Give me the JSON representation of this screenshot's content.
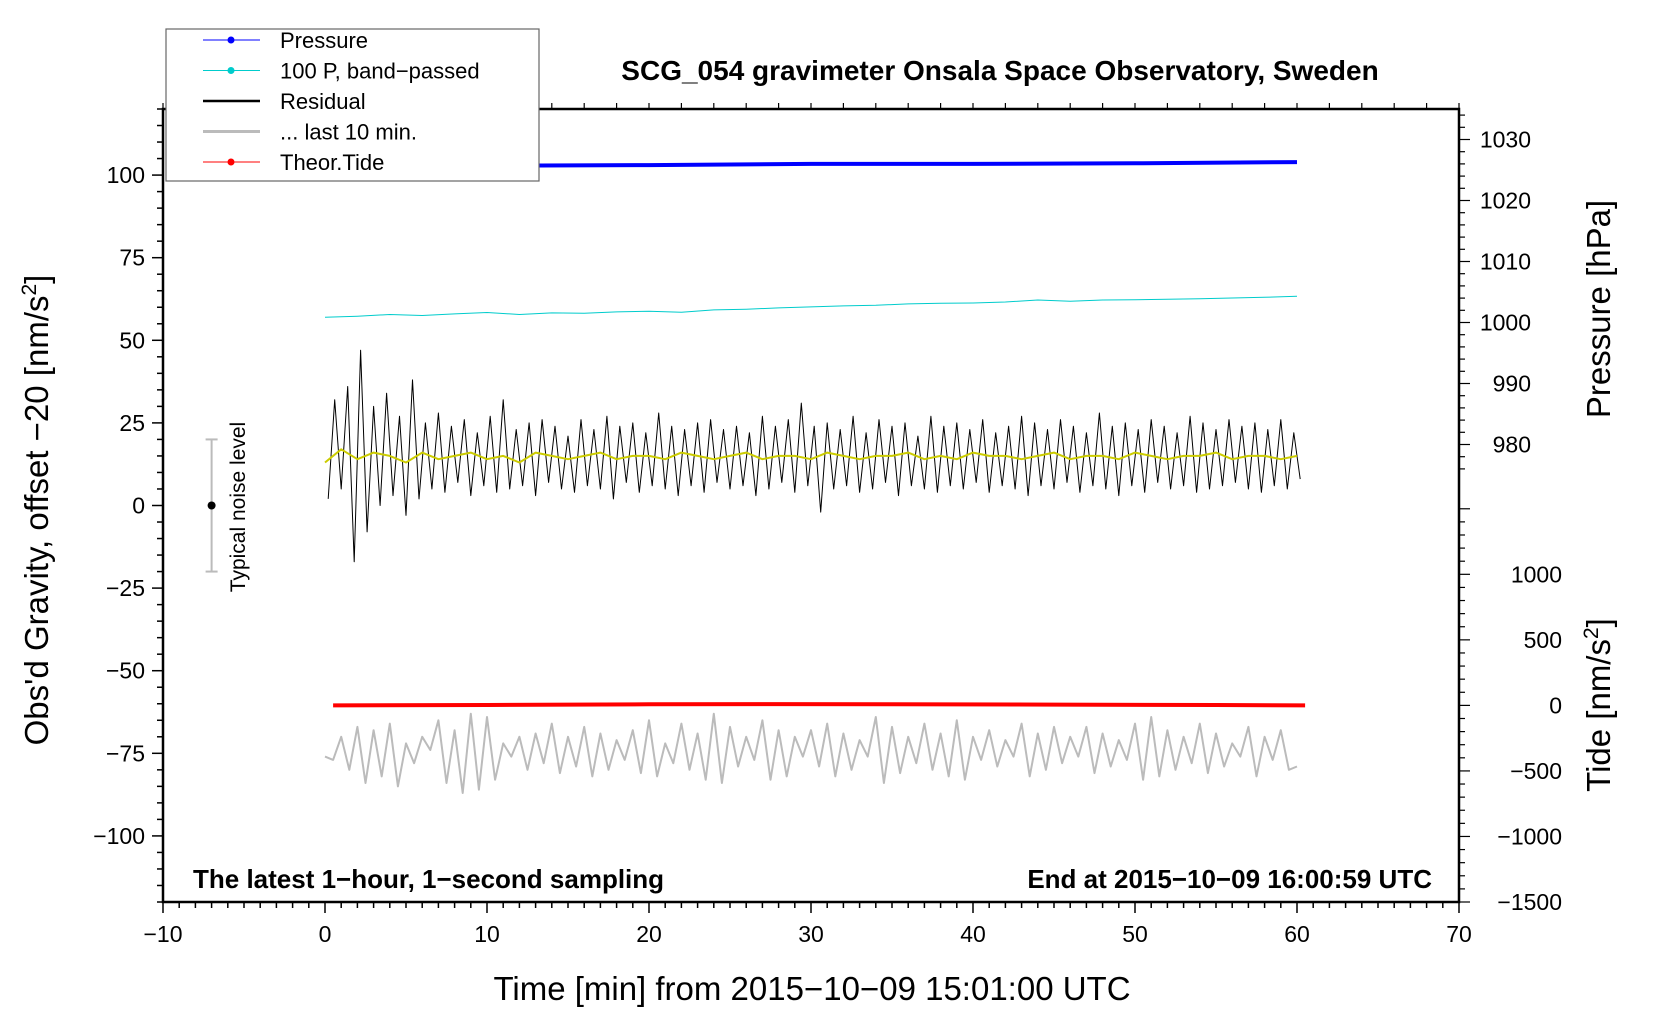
{
  "chart_data": {
    "type": "line",
    "title": "SCG_054 gravimeter Onsala Space Observatory, Sweden",
    "xlabel": "Time [min] from 2015−10−09 15:01:00 UTC",
    "ylabel": "Obs'd Gravity, offset −20 [nm/s",
    "ylabel_sup": "2",
    "ylabel_end": "]",
    "right_label_pressure": "Pressure [hPa]",
    "right_label_tide": "Tide [nm/s",
    "right_label_tide_sup": "2",
    "right_label_tide_end": "]",
    "annotation_left": "The latest 1−hour, 1−second sampling",
    "annotation_right": "End at 2015−10−09 16:00:59 UTC",
    "noise_label": "Typical noise level",
    "xlim": [
      -10,
      70
    ],
    "ylim": [
      -120,
      120
    ],
    "xticks": [
      -10,
      0,
      10,
      20,
      30,
      40,
      50,
      60,
      70
    ],
    "xtick_labels": [
      "−10",
      "0",
      "10",
      "20",
      "30",
      "40",
      "50",
      "60",
      "70"
    ],
    "yticks": [
      -100,
      -75,
      -50,
      -25,
      0,
      25,
      50,
      75,
      100
    ],
    "ytick_labels": [
      "−100",
      "−75",
      "−50",
      "−25",
      "0",
      "25",
      "50",
      "75",
      "100"
    ],
    "pressure_axis": {
      "range": [
        905,
        1035
      ],
      "ticks": [
        980,
        990,
        1000,
        1010,
        1020,
        1030
      ],
      "tick_labels": [
        "980",
        "990",
        "1000",
        "1010",
        "1020",
        "1030"
      ]
    },
    "tide_axis": {
      "range": [
        -1500,
        4550
      ],
      "ticks": [
        -1500,
        -1000,
        -500,
        0,
        500,
        1000
      ],
      "tick_labels": [
        "−1500",
        "−1000",
        "−500",
        "0",
        "500",
        "1000"
      ]
    },
    "legend": {
      "placement": "top-left",
      "entries": [
        {
          "label": "Pressure",
          "color": "#0000ff",
          "marker": true
        },
        {
          "label": "100 P, band−passed",
          "color": "#00cccc",
          "marker": true
        },
        {
          "label": "Residual",
          "color": "#000000",
          "marker": false
        },
        {
          "label": "... last 10 min.",
          "color": "#bbbbbb",
          "marker": false
        },
        {
          "label": "Theor.Tide",
          "color": "#ff0000",
          "marker": true
        }
      ]
    },
    "noise_level": {
      "x": -7,
      "center": 0,
      "half_range": 20
    },
    "series": [
      {
        "name": "Pressure",
        "axis": "pressure",
        "color": "#0000ff",
        "x": [
          0,
          10,
          20,
          30,
          40,
          50,
          60
        ],
        "values": [
          1025.6,
          1025.7,
          1025.8,
          1026.0,
          1026.0,
          1026.1,
          1026.3
        ]
      },
      {
        "name": "100 P, band-passed",
        "axis": "left",
        "color": "#00cccc",
        "x_start": 0,
        "x_step": 2,
        "values": [
          57,
          57.3,
          57.8,
          57.5,
          58,
          58.4,
          57.8,
          58.3,
          58.2,
          58.6,
          58.8,
          58.5,
          59.2,
          59.4,
          59.8,
          60.1,
          60.4,
          60.6,
          61,
          61.2,
          61.3,
          61.6,
          62.2,
          61.8,
          62.2,
          62.3,
          62.4,
          62.6,
          62.8,
          63,
          63.3
        ]
      },
      {
        "name": "Residual",
        "axis": "left",
        "color": "#000000",
        "x_start": 0.2,
        "x_step": 0.4,
        "values": [
          2,
          32,
          5,
          36,
          -17,
          47,
          -8,
          30,
          0,
          34,
          3,
          27,
          -3,
          38,
          2,
          25,
          5,
          28,
          4,
          24,
          7,
          26,
          3,
          22,
          6,
          27,
          4,
          32,
          5,
          23,
          6,
          25,
          3,
          26,
          7,
          24,
          5,
          21,
          4,
          26,
          6,
          23,
          5,
          27,
          2,
          24,
          7,
          25,
          4,
          22,
          6,
          28,
          5,
          24,
          3,
          23,
          6,
          25,
          4,
          26,
          7,
          23,
          5,
          24,
          6,
          22,
          3,
          27,
          5,
          24,
          7,
          26,
          4,
          31,
          6,
          24,
          -2,
          25,
          5,
          23,
          6,
          27,
          4,
          22,
          5,
          26,
          7,
          24,
          3,
          25,
          6,
          21,
          5,
          27,
          4,
          24,
          6,
          25,
          5,
          23,
          7,
          26,
          4,
          22,
          6,
          24,
          5,
          27,
          3,
          25,
          6,
          23,
          5,
          26,
          7,
          24,
          4,
          22,
          6,
          28,
          5,
          24,
          3,
          25,
          6,
          23,
          4,
          26,
          7,
          24,
          5,
          22,
          6,
          27,
          4,
          25,
          5,
          23,
          6,
          26,
          7,
          24,
          5,
          25,
          4,
          23,
          6,
          26,
          5,
          22,
          8
        ]
      },
      {
        "name": "Residual smoothed",
        "axis": "left",
        "color": "#cccc00",
        "x_start": 0,
        "x_step": 1,
        "values": [
          13,
          17,
          14,
          16,
          15,
          13,
          16,
          14,
          15,
          16,
          14,
          15,
          13,
          16,
          15,
          14,
          15,
          16,
          14,
          15,
          15,
          14,
          16,
          15,
          14,
          15,
          16,
          14,
          15,
          15,
          14,
          16,
          15,
          14,
          15,
          15,
          16,
          14,
          15,
          14,
          16,
          15,
          15,
          14,
          15,
          16,
          14,
          15,
          15,
          14,
          16,
          15,
          14,
          15,
          15,
          16,
          14,
          15,
          15,
          14,
          15
        ]
      },
      {
        "name": "... last 10 min.",
        "axis": "left",
        "color": "#bbbbbb",
        "x_start": 0,
        "x_step": 0.5,
        "values": [
          -76,
          -77,
          -70,
          -80,
          -67,
          -84,
          -68,
          -82,
          -66,
          -85,
          -72,
          -78,
          -70,
          -74,
          -65,
          -84,
          -68,
          -87,
          -63,
          -86,
          -64,
          -83,
          -72,
          -76,
          -70,
          -80,
          -69,
          -78,
          -66,
          -81,
          -70,
          -79,
          -67,
          -82,
          -69,
          -80,
          -71,
          -77,
          -68,
          -81,
          -65,
          -82,
          -72,
          -78,
          -66,
          -80,
          -69,
          -83,
          -63,
          -84,
          -67,
          -79,
          -70,
          -77,
          -65,
          -83,
          -68,
          -82,
          -70,
          -76,
          -68,
          -79,
          -66,
          -82,
          -69,
          -80,
          -71,
          -76,
          -64,
          -84,
          -67,
          -81,
          -70,
          -78,
          -66,
          -80,
          -69,
          -82,
          -65,
          -83,
          -70,
          -77,
          -68,
          -79,
          -71,
          -76,
          -66,
          -82,
          -69,
          -80,
          -67,
          -78,
          -70,
          -76,
          -67,
          -81,
          -69,
          -79,
          -71,
          -77,
          -66,
          -83,
          -64,
          -82,
          -68,
          -80,
          -70,
          -78,
          -66,
          -81,
          -69,
          -79,
          -72,
          -76,
          -67,
          -82,
          -70,
          -77,
          -68,
          -80,
          -79
        ]
      },
      {
        "name": "Theor.Tide",
        "axis": "tide",
        "color": "#ff0000",
        "x": [
          0.5,
          10,
          20,
          28,
          35,
          45,
          55,
          60.5
        ],
        "values": [
          0,
          3,
          8,
          10,
          9,
          6,
          3,
          0
        ]
      }
    ]
  }
}
